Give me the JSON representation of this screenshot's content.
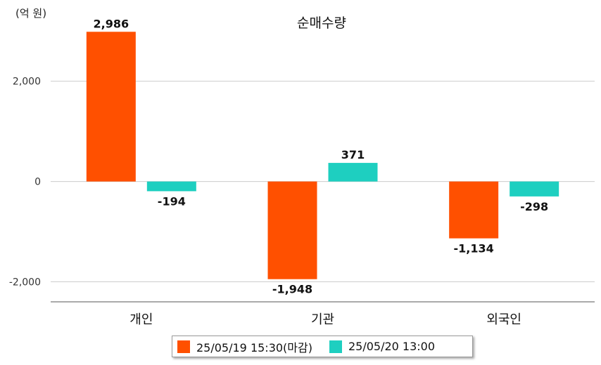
{
  "chart_data": {
    "type": "bar",
    "title": "순매수량",
    "unit_label": "(억 원)",
    "categories": [
      "개인",
      "기관",
      "외국인"
    ],
    "series": [
      {
        "name": "25/05/19 15:30(마감)",
        "color": "#ff5000",
        "values": [
          2986,
          -1948,
          -1134
        ],
        "labels": [
          "2,986",
          "-1,948",
          "-1,134"
        ]
      },
      {
        "name": "25/05/20 13:00",
        "color": "#1ecfc0",
        "values": [
          -194,
          371,
          -298
        ],
        "labels": [
          "-194",
          "371",
          "-298"
        ]
      }
    ],
    "y_ticks": [
      2000,
      0,
      -2000
    ],
    "y_tick_labels": [
      "2,000",
      "0",
      "-2,000"
    ],
    "ylim": [
      -2400,
      3200
    ],
    "grid": true,
    "legend_position": "bottom"
  }
}
